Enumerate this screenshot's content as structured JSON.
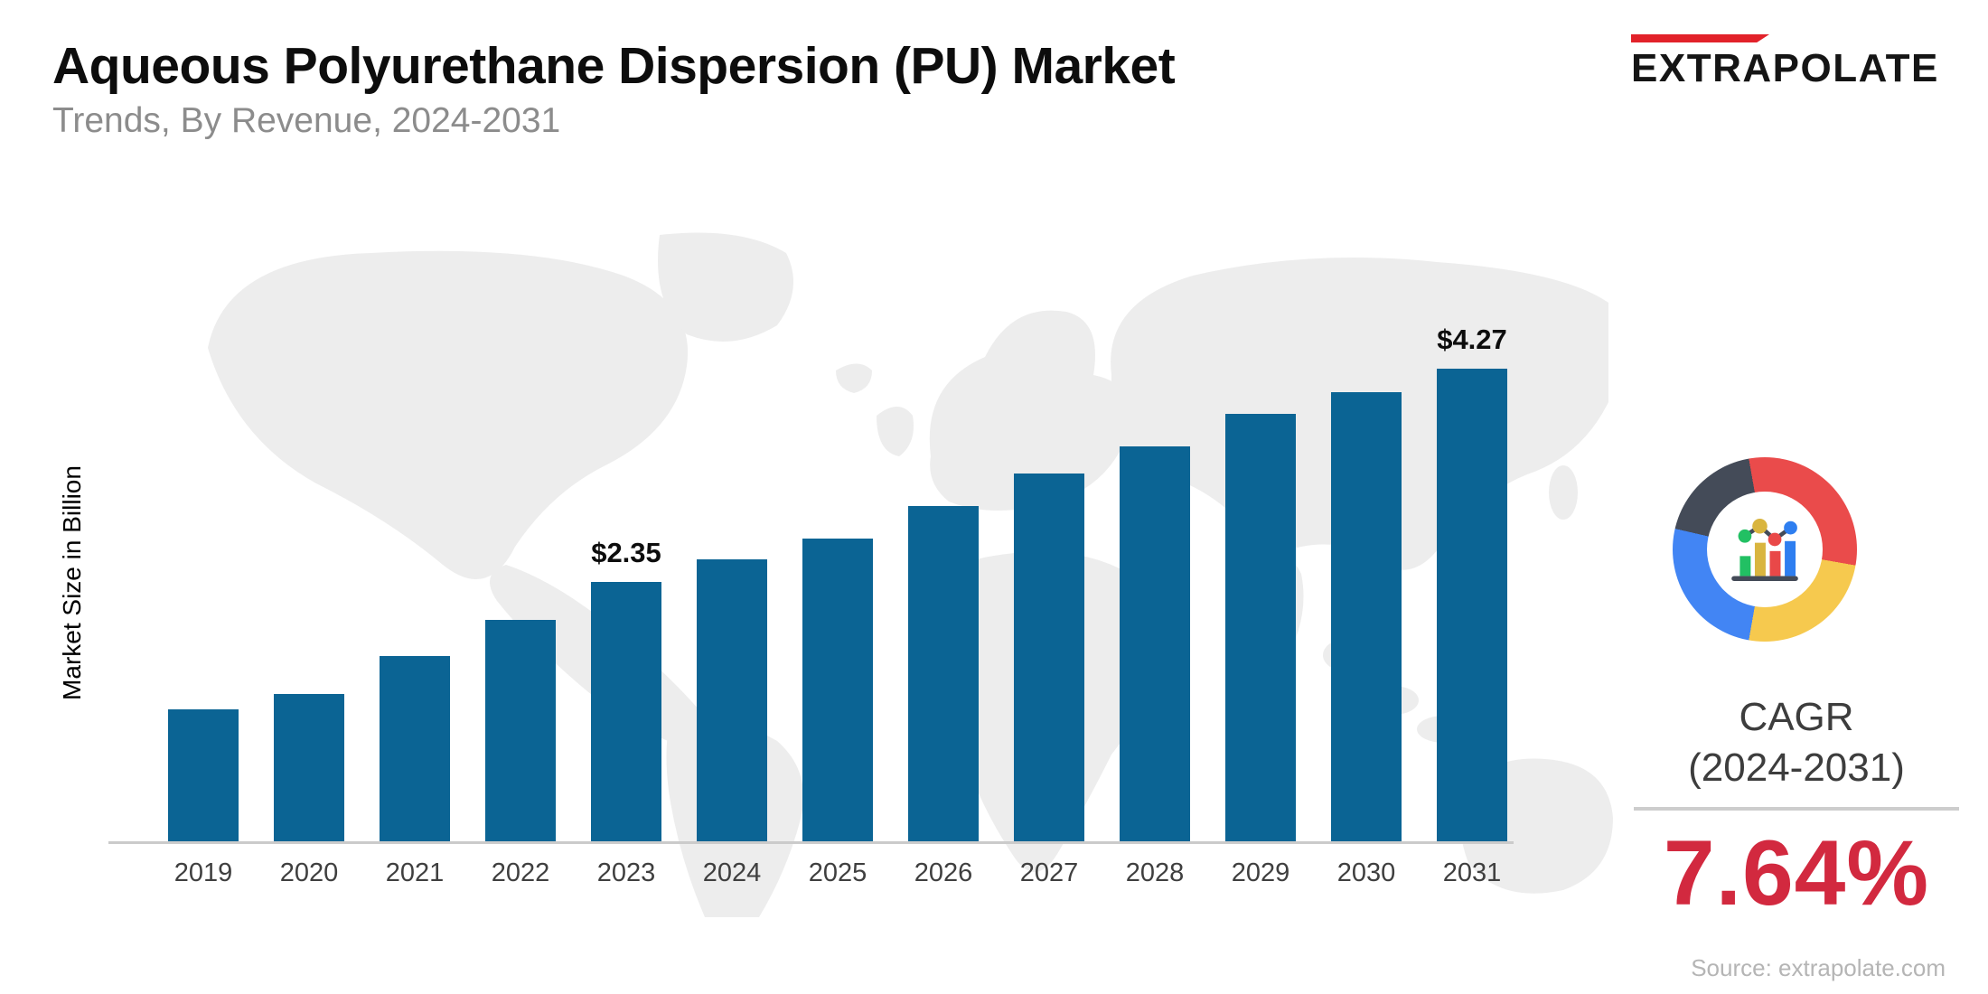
{
  "header": {
    "title": "Aqueous Polyurethane Dispersion (PU) Market",
    "subtitle": "Trends, By Revenue, 2024-2031"
  },
  "logo": {
    "text": "EXTRAPOLATE",
    "bar_color": "#e2222a"
  },
  "chart": {
    "y_axis_label": "Market Size in Billion"
  },
  "chart_data": {
    "type": "bar",
    "title": "Aqueous Polyurethane Dispersion (PU) Market",
    "subtitle": "Trends, By Revenue, 2024-2031",
    "unit": "USD Billion",
    "xlabel": "",
    "ylabel": "Market Size in Billion",
    "categories": [
      "2019",
      "2020",
      "2021",
      "2022",
      "2023",
      "2024",
      "2025",
      "2026",
      "2027",
      "2028",
      "2029",
      "2030",
      "2031"
    ],
    "values": [
      1.2,
      1.34,
      1.68,
      2.01,
      2.35,
      2.55,
      2.74,
      3.03,
      3.33,
      3.57,
      3.86,
      4.06,
      4.27
    ],
    "data_labels": [
      {
        "category": "2023",
        "label": "$2.35"
      },
      {
        "category": "2031",
        "label": "$4.27"
      }
    ],
    "ylim": [
      0,
      4.27
    ],
    "grid": false,
    "legend": false,
    "bar_color": "#0b6494"
  },
  "side_panel": {
    "icon": "donut-chart-icon",
    "cagr_title": "CAGR",
    "cagr_period": "(2024-2031)",
    "cagr_value": "7.64%",
    "accent_color": "#d2293f"
  },
  "footer": {
    "source": "Source: extrapolate.com"
  }
}
